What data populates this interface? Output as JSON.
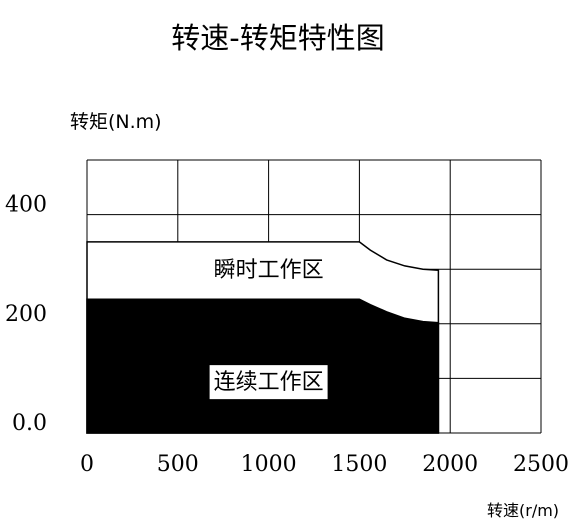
{
  "chart_data": {
    "type": "area",
    "title": "转速-转矩特性图",
    "ylabel": "转矩(N.m)",
    "xlabel": "转速(r/m)",
    "xlim": [
      0,
      2500
    ],
    "ylim": [
      0,
      500
    ],
    "x_ticks": [
      0,
      500,
      1000,
      1500,
      2000,
      2500
    ],
    "x_tick_labels": [
      "0",
      "500",
      "1000",
      "1500",
      "2000",
      "2500"
    ],
    "y_tick_labels": [
      {
        "value": 0,
        "label": "0.0"
      },
      {
        "value": 200,
        "label": "200"
      },
      {
        "value": 400,
        "label": "400"
      }
    ],
    "grid": true,
    "grid_y": [
      0,
      100,
      200,
      300,
      400,
      500
    ],
    "series": [
      {
        "name": "瞬时工作区",
        "fill": "#ffffff",
        "outline": "#000000",
        "x": [
          0,
          1500,
          1560,
          1650,
          1750,
          1850,
          1935,
          1935,
          0
        ],
        "y": [
          350,
          350,
          335,
          317,
          306,
          300,
          298,
          0,
          0
        ]
      },
      {
        "name": "连续工作区",
        "fill": "#000000",
        "outline": "#000000",
        "x": [
          0,
          1500,
          1560,
          1650,
          1750,
          1850,
          1935,
          1935,
          0
        ],
        "y": [
          245,
          245,
          235,
          222,
          210,
          204,
          202,
          0,
          0
        ]
      }
    ],
    "annotations": [
      {
        "text": "瞬时工作区",
        "x": 1000,
        "y": 300,
        "box": false
      },
      {
        "text": "连续工作区",
        "x": 1000,
        "y": 95,
        "box": true
      }
    ]
  }
}
